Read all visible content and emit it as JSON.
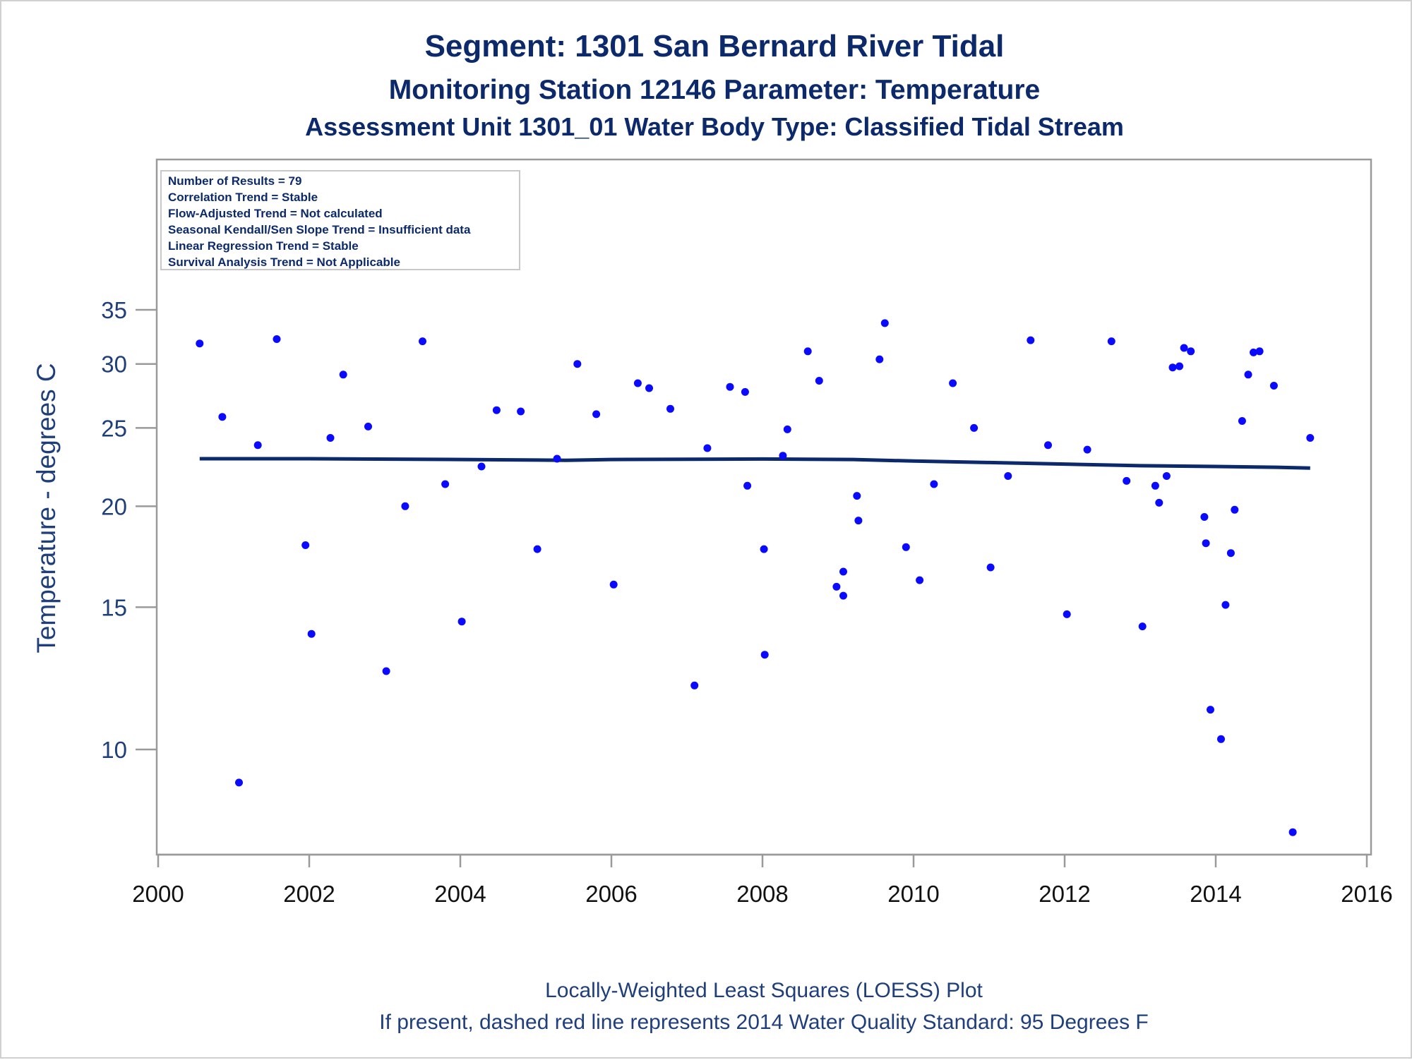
{
  "titles": {
    "line1": "Segment: 1301  San Bernard River Tidal",
    "line2": "Monitoring Station 12146 Parameter: Temperature",
    "line3": "Assessment Unit 1301_01   Water Body Type: Classified Tidal Stream"
  },
  "stats": {
    "lines": [
      "Number of Results = 79",
      "Correlation Trend = Stable",
      "Flow-Adjusted Trend = Not calculated",
      "Seasonal Kendall/Sen Slope Trend = Insufficient data",
      "Linear Regression Trend = Stable",
      "Survival Analysis Trend = Not Applicable"
    ]
  },
  "footnotes": {
    "line1": "Locally-Weighted Least Squares (LOESS) Plot",
    "line2": "If present, dashed red line represents 2014 Water Quality Standard: 95   Degrees F"
  },
  "colors": {
    "points": "#0a0aff",
    "trend_line": "#0c2a6b",
    "title": "#0c2a6b",
    "axis": "#9a9a9a"
  },
  "chart_data": {
    "type": "scatter",
    "title": "Segment: 1301  San Bernard River Tidal",
    "xlabel": "",
    "ylabel": "Temperature - degrees C",
    "xlim": [
      2000,
      2016
    ],
    "ylim": [
      8,
      35
    ],
    "y_scale": "log",
    "x_ticks": [
      2000,
      2002,
      2004,
      2006,
      2008,
      2010,
      2012,
      2014,
      2016
    ],
    "y_ticks": [
      10,
      15,
      20,
      25,
      30,
      35
    ],
    "grid": false,
    "points": [
      {
        "x": 2000.55,
        "y": 31.8
      },
      {
        "x": 2000.85,
        "y": 25.8
      },
      {
        "x": 2001.07,
        "y": 9.1
      },
      {
        "x": 2001.32,
        "y": 23.8
      },
      {
        "x": 2001.57,
        "y": 32.2
      },
      {
        "x": 2001.95,
        "y": 17.9
      },
      {
        "x": 2002.03,
        "y": 13.9
      },
      {
        "x": 2002.28,
        "y": 24.3
      },
      {
        "x": 2002.45,
        "y": 29.1
      },
      {
        "x": 2002.78,
        "y": 25.1
      },
      {
        "x": 2003.02,
        "y": 12.5
      },
      {
        "x": 2003.27,
        "y": 20.0
      },
      {
        "x": 2003.5,
        "y": 32.0
      },
      {
        "x": 2003.8,
        "y": 21.3
      },
      {
        "x": 2004.02,
        "y": 14.4
      },
      {
        "x": 2004.28,
        "y": 22.4
      },
      {
        "x": 2004.48,
        "y": 26.3
      },
      {
        "x": 2004.8,
        "y": 26.2
      },
      {
        "x": 2005.02,
        "y": 17.7
      },
      {
        "x": 2005.28,
        "y": 22.9
      },
      {
        "x": 2005.55,
        "y": 30.0
      },
      {
        "x": 2005.8,
        "y": 26.0
      },
      {
        "x": 2006.03,
        "y": 16.0
      },
      {
        "x": 2006.35,
        "y": 28.4
      },
      {
        "x": 2006.5,
        "y": 28.0
      },
      {
        "x": 2006.78,
        "y": 26.4
      },
      {
        "x": 2007.1,
        "y": 12.0
      },
      {
        "x": 2007.27,
        "y": 23.6
      },
      {
        "x": 2007.57,
        "y": 28.1
      },
      {
        "x": 2007.77,
        "y": 27.7
      },
      {
        "x": 2007.8,
        "y": 21.2
      },
      {
        "x": 2008.02,
        "y": 17.7
      },
      {
        "x": 2008.03,
        "y": 13.1
      },
      {
        "x": 2008.27,
        "y": 23.1
      },
      {
        "x": 2008.33,
        "y": 24.9
      },
      {
        "x": 2008.6,
        "y": 31.1
      },
      {
        "x": 2008.75,
        "y": 28.6
      },
      {
        "x": 2008.98,
        "y": 15.9
      },
      {
        "x": 2009.07,
        "y": 15.5
      },
      {
        "x": 2009.07,
        "y": 16.6
      },
      {
        "x": 2009.25,
        "y": 20.6
      },
      {
        "x": 2009.27,
        "y": 19.2
      },
      {
        "x": 2009.55,
        "y": 30.4
      },
      {
        "x": 2009.62,
        "y": 33.7
      },
      {
        "x": 2009.9,
        "y": 17.8
      },
      {
        "x": 2010.08,
        "y": 16.2
      },
      {
        "x": 2010.27,
        "y": 21.3
      },
      {
        "x": 2010.52,
        "y": 28.4
      },
      {
        "x": 2010.8,
        "y": 25.0
      },
      {
        "x": 2011.02,
        "y": 16.8
      },
      {
        "x": 2011.25,
        "y": 21.8
      },
      {
        "x": 2011.55,
        "y": 32.1
      },
      {
        "x": 2011.78,
        "y": 23.8
      },
      {
        "x": 2012.03,
        "y": 14.7
      },
      {
        "x": 2012.3,
        "y": 23.5
      },
      {
        "x": 2012.62,
        "y": 32.0
      },
      {
        "x": 2012.82,
        "y": 21.5
      },
      {
        "x": 2013.03,
        "y": 14.2
      },
      {
        "x": 2013.2,
        "y": 21.2
      },
      {
        "x": 2013.25,
        "y": 20.2
      },
      {
        "x": 2013.35,
        "y": 21.8
      },
      {
        "x": 2013.43,
        "y": 29.7
      },
      {
        "x": 2013.52,
        "y": 29.8
      },
      {
        "x": 2013.58,
        "y": 31.4
      },
      {
        "x": 2013.67,
        "y": 31.1
      },
      {
        "x": 2013.85,
        "y": 19.4
      },
      {
        "x": 2013.87,
        "y": 18.0
      },
      {
        "x": 2013.93,
        "y": 11.2
      },
      {
        "x": 2014.07,
        "y": 10.3
      },
      {
        "x": 2014.13,
        "y": 15.1
      },
      {
        "x": 2014.2,
        "y": 17.5
      },
      {
        "x": 2014.25,
        "y": 19.8
      },
      {
        "x": 2014.35,
        "y": 25.5
      },
      {
        "x": 2014.43,
        "y": 29.1
      },
      {
        "x": 2014.5,
        "y": 31.0
      },
      {
        "x": 2014.58,
        "y": 31.1
      },
      {
        "x": 2014.77,
        "y": 28.2
      },
      {
        "x": 2015.02,
        "y": 7.9
      },
      {
        "x": 2015.25,
        "y": 24.3
      }
    ],
    "trend_line": {
      "x": [
        2000.55,
        2002.0,
        2004.0,
        2005.4,
        2006.0,
        2008.0,
        2009.2,
        2010.0,
        2011.0,
        2012.0,
        2013.0,
        2014.0,
        2014.8,
        2015.25
      ],
      "y": [
        22.9,
        22.9,
        22.85,
        22.8,
        22.85,
        22.88,
        22.85,
        22.75,
        22.65,
        22.55,
        22.45,
        22.4,
        22.35,
        22.3
      ]
    }
  }
}
